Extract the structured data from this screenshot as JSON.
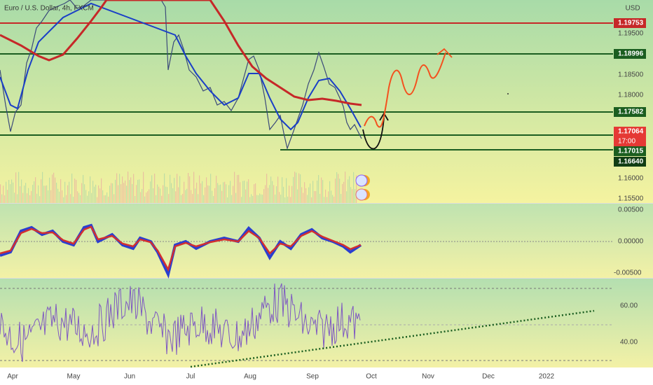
{
  "header": {
    "title": "Euro / U.S. Dollar, 4h, FXCM",
    "currency": "USD"
  },
  "price_axis": [
    "1.19500",
    "1.18500",
    "1.18000",
    "1.16000",
    "1.15500"
  ],
  "levels": [
    {
      "label": "1.19753"
    },
    {
      "label": "1.18996"
    },
    {
      "label": "1.17582"
    },
    {
      "label": "1.17064",
      "countdown": "17:00"
    },
    {
      "label": "1.17015"
    },
    {
      "label": "1.16640"
    }
  ],
  "macd_axis": [
    "0.00500",
    "0.00000",
    "-0.00500"
  ],
  "rsi_axis": [
    "60.00",
    "40.00"
  ],
  "time_axis": [
    "Apr",
    "May",
    "Jun",
    "Jul",
    "Aug",
    "Sep",
    "Oct",
    "Nov",
    "Dec",
    "2022"
  ]
}
